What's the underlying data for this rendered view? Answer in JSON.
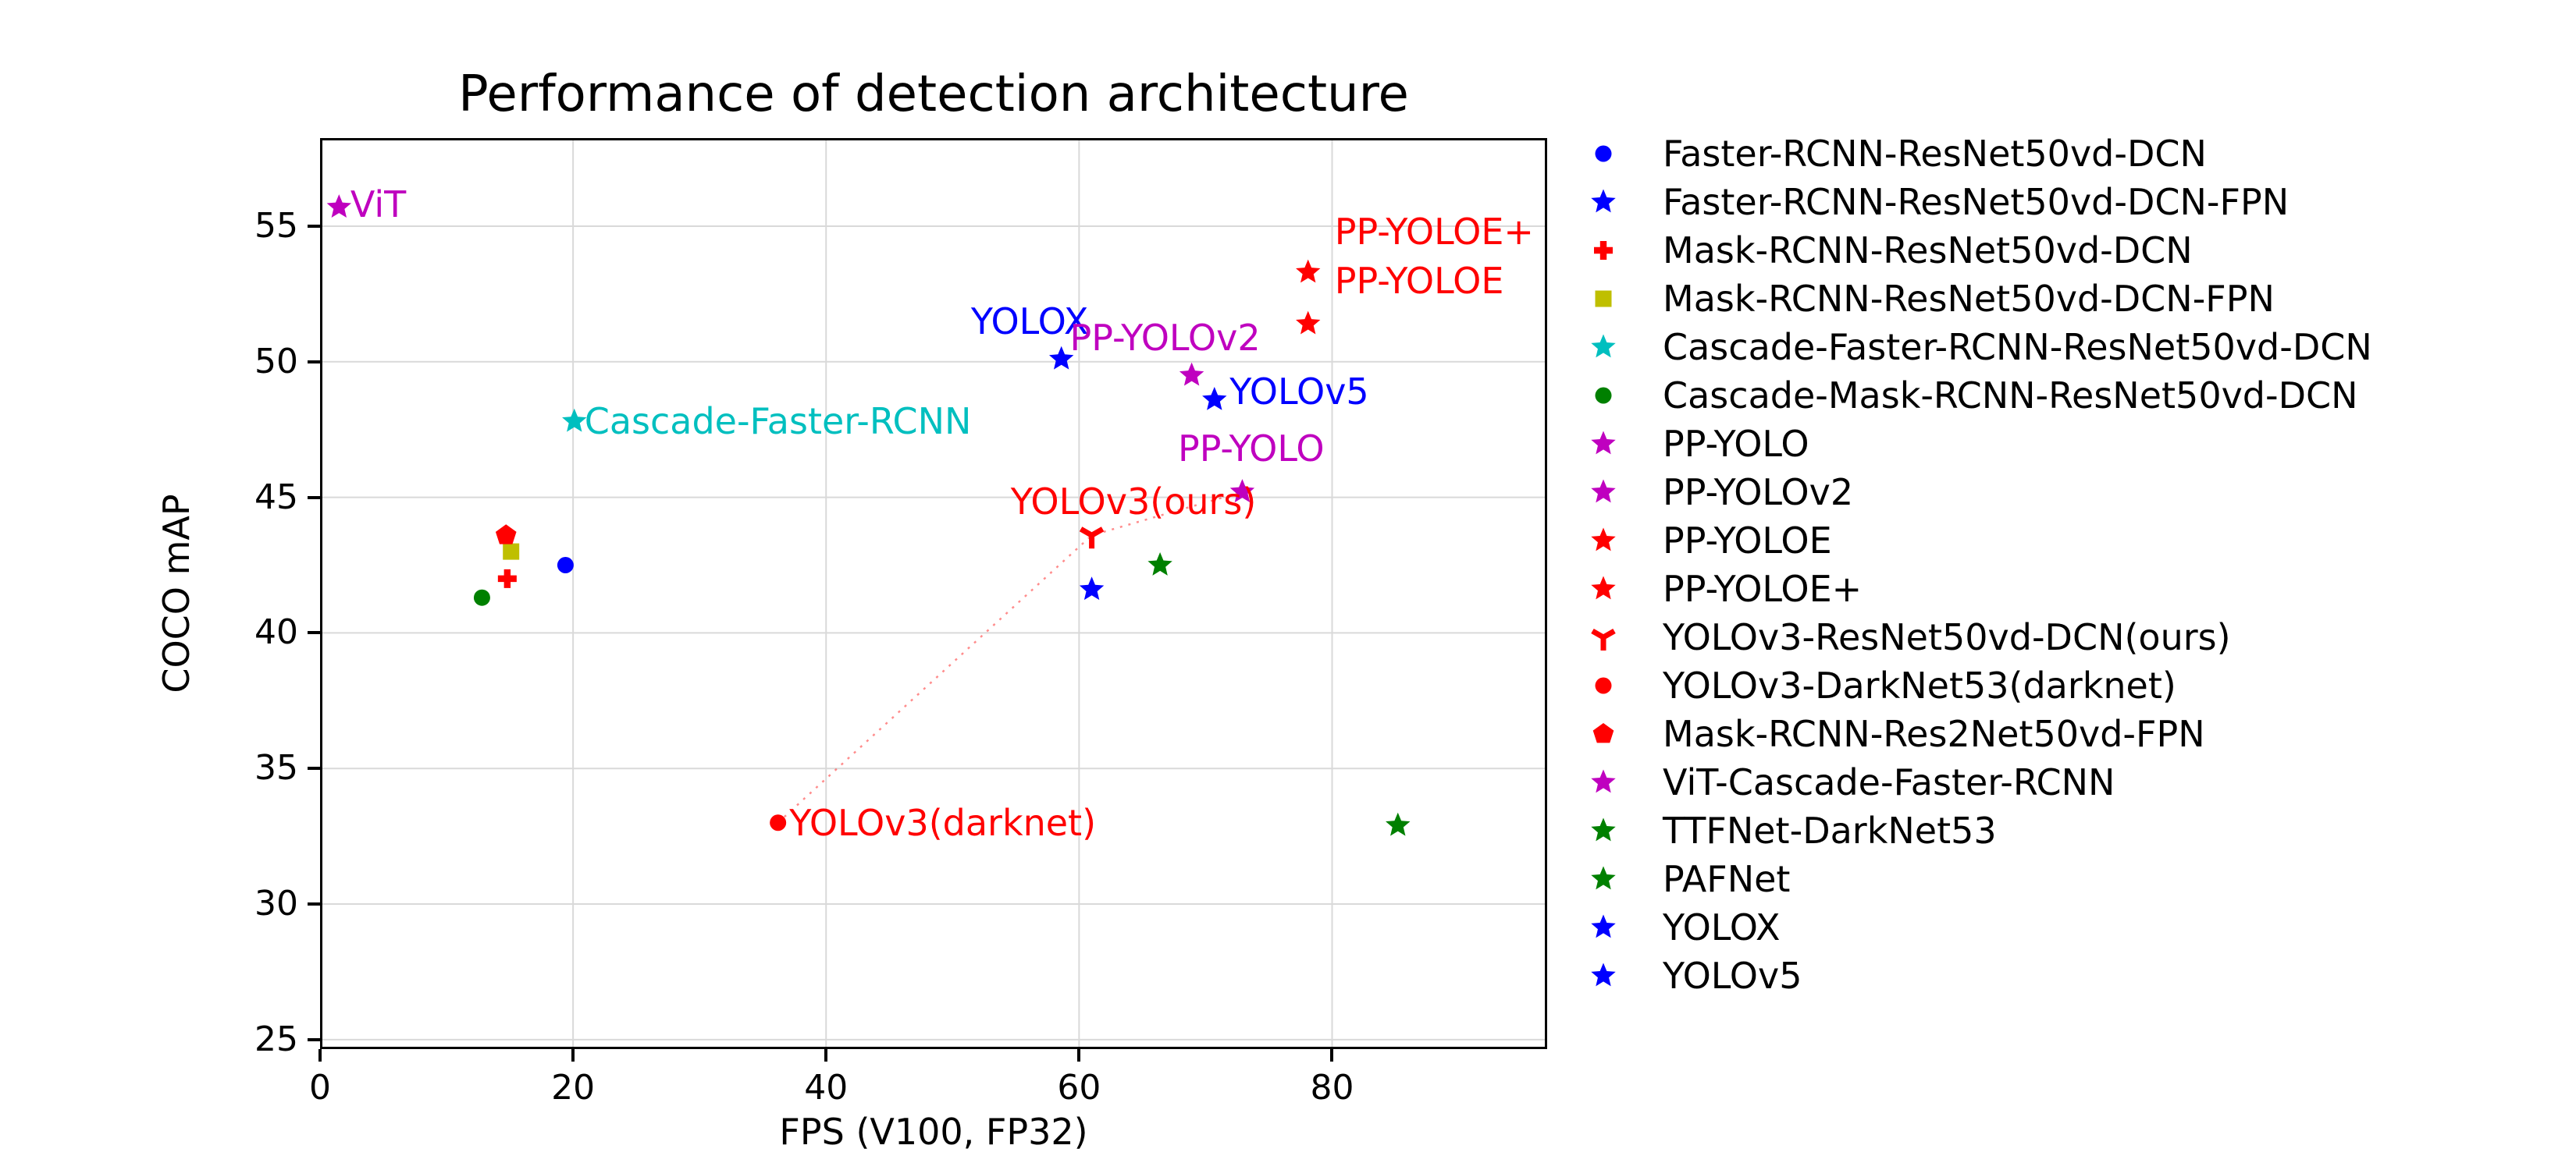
{
  "chart_data": {
    "type": "scatter",
    "title": "Performance of detection architecture",
    "xlabel": "FPS (V100, FP32)",
    "ylabel": "COCO mAP",
    "xlim": [
      0,
      97
    ],
    "ylim": [
      24.65,
      58.25
    ],
    "xticks": [
      0,
      20,
      40,
      60,
      80
    ],
    "yticks": [
      25,
      30,
      35,
      40,
      45,
      50,
      55
    ],
    "grid": true,
    "grid_color": "#d9d9d9",
    "spine_color": "#000000",
    "legend_position": "right-outside",
    "series": [
      {
        "name": "Faster-RCNN-ResNet50vd-DCN",
        "marker": "circle",
        "color": "#0000ff",
        "points": [
          [
            19.4,
            42.5
          ]
        ]
      },
      {
        "name": "Faster-RCNN-ResNet50vd-DCN-FPN",
        "marker": "star",
        "color": "#0000ff",
        "points": [
          [
            61.0,
            41.6
          ]
        ]
      },
      {
        "name": "Mask-RCNN-ResNet50vd-DCN",
        "marker": "plus",
        "color": "#ff0000",
        "points": [
          [
            14.8,
            42.0
          ]
        ]
      },
      {
        "name": "Mask-RCNN-ResNet50vd-DCN-FPN",
        "marker": "square",
        "color": "#bfbf00",
        "points": [
          [
            15.1,
            43.0
          ]
        ]
      },
      {
        "name": "Cascade-Faster-RCNN-ResNet50vd-DCN",
        "marker": "star",
        "color": "#00bfbf",
        "points": [
          [
            20.1,
            47.8
          ]
        ]
      },
      {
        "name": "Cascade-Mask-RCNN-ResNet50vd-DCN",
        "marker": "circle",
        "color": "#008000",
        "points": [
          [
            12.8,
            41.3
          ]
        ]
      },
      {
        "name": "PP-YOLO",
        "marker": "star",
        "color": "#bf00bf",
        "points": [
          [
            72.9,
            45.2
          ]
        ]
      },
      {
        "name": "PP-YOLOv2",
        "marker": "star",
        "color": "#bf00bf",
        "points": [
          [
            68.9,
            49.5
          ]
        ]
      },
      {
        "name": "PP-YOLOE",
        "marker": "star",
        "color": "#ff0000",
        "points": [
          [
            78.1,
            51.4
          ]
        ]
      },
      {
        "name": "PP-YOLOE+",
        "marker": "star",
        "color": "#ff0000",
        "points": [
          [
            78.1,
            53.3
          ]
        ]
      },
      {
        "name": "YOLOv3-ResNet50vd-DCN(ours)",
        "marker": "tri-down",
        "color": "#ff0000",
        "points": [
          [
            61.0,
            43.6
          ]
        ]
      },
      {
        "name": "YOLOv3-DarkNet53(darknet)",
        "marker": "circle",
        "color": "#ff0000",
        "points": [
          [
            36.2,
            33.0
          ]
        ]
      },
      {
        "name": "Mask-RCNN-Res2Net50vd-FPN",
        "marker": "pentagon",
        "color": "#ff0000",
        "points": [
          [
            14.7,
            43.6
          ]
        ]
      },
      {
        "name": "ViT-Cascade-Faster-RCNN",
        "marker": "star",
        "color": "#bf00bf",
        "points": [
          [
            1.5,
            55.7
          ]
        ]
      },
      {
        "name": "TTFNet-DarkNet53",
        "marker": "star",
        "color": "#008000",
        "points": [
          [
            85.2,
            32.9
          ]
        ]
      },
      {
        "name": "PAFNet",
        "marker": "star",
        "color": "#008000",
        "points": [
          [
            66.4,
            42.5
          ]
        ]
      },
      {
        "name": "YOLOX",
        "marker": "star",
        "color": "#0000ff",
        "points": [
          [
            58.6,
            50.1
          ]
        ]
      },
      {
        "name": "YOLOv5",
        "marker": "star",
        "color": "#0000ff",
        "points": [
          [
            70.7,
            48.6
          ]
        ]
      }
    ],
    "annotations": [
      {
        "text": "ViT",
        "color": "#bf00bf",
        "x": 2.4,
        "y": 55.8,
        "ha": "left"
      },
      {
        "text": "Cascade-Faster-RCNN",
        "color": "#00bfbf",
        "x": 20.9,
        "y": 47.8,
        "ha": "left"
      },
      {
        "text": "YOLOX",
        "color": "#0000ff",
        "x": 56.1,
        "y": 51.5,
        "ha": "center"
      },
      {
        "text": "PP-YOLOv2",
        "color": "#bf00bf",
        "x": 66.8,
        "y": 50.9,
        "ha": "center"
      },
      {
        "text": "YOLOv5",
        "color": "#0000ff",
        "x": 71.9,
        "y": 48.9,
        "ha": "left"
      },
      {
        "text": "PP-YOLO",
        "color": "#bf00bf",
        "x": 73.6,
        "y": 46.8,
        "ha": "center"
      },
      {
        "text": "YOLOv3(ours)",
        "color": "#ff0000",
        "x": 64.3,
        "y": 44.85,
        "ha": "center"
      },
      {
        "text": "PP-YOLOE+",
        "color": "#ff0000",
        "x": 80.2,
        "y": 54.8,
        "ha": "left"
      },
      {
        "text": "PP-YOLOE",
        "color": "#ff0000",
        "x": 80.2,
        "y": 53.0,
        "ha": "left"
      },
      {
        "text": "YOLOv3(darknet)",
        "color": "#ff0000",
        "x": 37.1,
        "y": 33.0,
        "ha": "left"
      }
    ],
    "connector_line": {
      "color": "#ff0000",
      "opacity": 0.45,
      "style": "dotted",
      "points": [
        [
          36.2,
          33.0
        ],
        [
          61.0,
          43.6
        ],
        [
          72.9,
          45.2
        ]
      ]
    }
  }
}
